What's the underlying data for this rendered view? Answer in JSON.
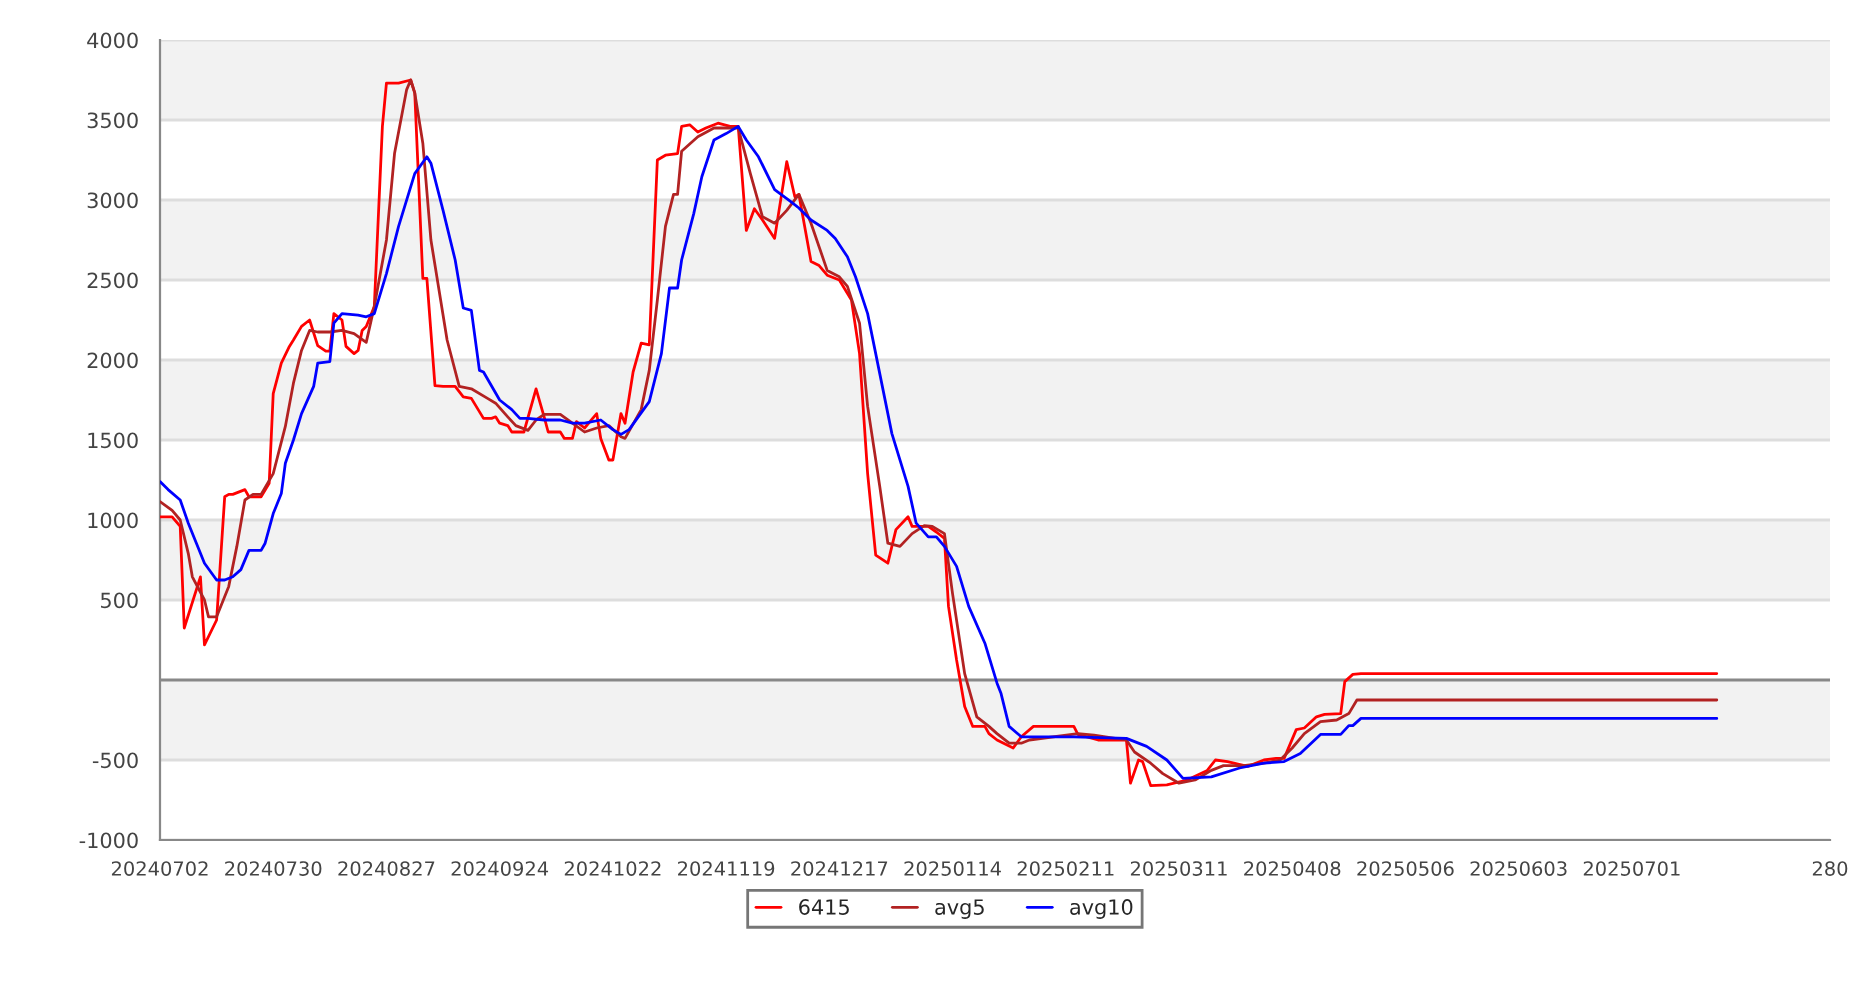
{
  "chart_data": {
    "type": "line",
    "xlim": [
      "2024-07-02",
      "2025-08-19"
    ],
    "ylim": [
      -1000,
      4000
    ],
    "xticks": [
      {
        "value": "2024-07-02",
        "label": "20240702"
      },
      {
        "value": "2024-07-30",
        "label": "20240730"
      },
      {
        "value": "2024-08-27",
        "label": "20240827"
      },
      {
        "value": "2024-09-24",
        "label": "20240924"
      },
      {
        "value": "2024-10-22",
        "label": "20241022"
      },
      {
        "value": "2024-11-19",
        "label": "20241119"
      },
      {
        "value": "2024-12-17",
        "label": "20241217"
      },
      {
        "value": "2025-01-14",
        "label": "20250114"
      },
      {
        "value": "2025-02-11",
        "label": "20250211"
      },
      {
        "value": "2025-03-11",
        "label": "20250311"
      },
      {
        "value": "2025-04-08",
        "label": "20250408"
      },
      {
        "value": "2025-05-06",
        "label": "20250506"
      },
      {
        "value": "2025-06-03",
        "label": "20250603"
      },
      {
        "value": "2025-07-01",
        "label": "20250701"
      },
      {
        "value": "2025-08-19",
        "label": "280"
      }
    ],
    "yticks": [
      -1000,
      -500,
      500,
      1000,
      1500,
      2000,
      2500,
      3000,
      3500,
      4000
    ],
    "grid": "y",
    "legend": "bottom",
    "ref_lines": [
      {
        "axis": "y",
        "value": 0,
        "color": "#888888"
      }
    ],
    "line_style": "solid",
    "marker": "none",
    "bands": [
      {
        "axis": "y",
        "from": 3500,
        "to": 4000,
        "color": "#f2f2f2"
      },
      {
        "axis": "y",
        "from": 2500,
        "to": 3000,
        "color": "#f2f2f2"
      },
      {
        "axis": "y",
        "from": 1500,
        "to": 2000,
        "color": "#f2f2f2"
      },
      {
        "axis": "y",
        "from": 500,
        "to": 1000,
        "color": "#f2f2f2"
      },
      {
        "axis": "y",
        "from": -500,
        "to": 0,
        "color": "#f2f2f2"
      }
    ],
    "series": [
      {
        "name": "6415",
        "color": "#ff0000",
        "x": [
          "2024-07-02",
          "2024-07-05",
          "2024-07-07",
          "2024-07-08",
          "2024-07-12",
          "2024-07-13",
          "2024-07-16",
          "2024-07-18",
          "2024-07-19",
          "2024-07-20",
          "2024-07-23",
          "2024-07-24",
          "2024-07-27",
          "2024-07-29",
          "2024-07-30",
          "2024-08-01",
          "2024-08-03",
          "2024-08-04",
          "2024-08-06",
          "2024-08-08",
          "2024-08-10",
          "2024-08-12",
          "2024-08-13",
          "2024-08-14",
          "2024-08-16",
          "2024-08-17",
          "2024-08-19",
          "2024-08-20",
          "2024-08-21",
          "2024-08-22",
          "2024-08-24",
          "2024-08-26",
          "2024-08-27",
          "2024-08-30",
          "2024-09-02",
          "2024-09-03",
          "2024-09-05",
          "2024-09-06",
          "2024-09-08",
          "2024-09-10",
          "2024-09-13",
          "2024-09-15",
          "2024-09-17",
          "2024-09-20",
          "2024-09-22",
          "2024-09-23",
          "2024-09-24",
          "2024-09-26",
          "2024-09-27",
          "2024-09-30",
          "2024-10-03",
          "2024-10-05",
          "2024-10-06",
          "2024-10-09",
          "2024-10-10",
          "2024-10-12",
          "2024-10-13",
          "2024-10-15",
          "2024-10-17",
          "2024-10-18",
          "2024-10-19",
          "2024-10-21",
          "2024-10-22",
          "2024-10-24",
          "2024-10-25",
          "2024-10-27",
          "2024-10-29",
          "2024-10-31",
          "2024-11-02",
          "2024-11-04",
          "2024-11-07",
          "2024-11-08",
          "2024-11-10",
          "2024-11-12",
          "2024-11-14",
          "2024-11-17",
          "2024-11-20",
          "2024-11-22",
          "2024-11-24",
          "2024-11-26",
          "2024-11-28",
          "2024-12-01",
          "2024-12-04",
          "2024-12-06",
          "2024-12-07",
          "2024-12-10",
          "2024-12-12",
          "2024-12-14",
          "2024-12-17",
          "2024-12-20",
          "2024-12-22",
          "2024-12-24",
          "2024-12-26",
          "2024-12-29",
          "2024-12-31",
          "2025-01-03",
          "2025-01-04",
          "2025-01-08",
          "2025-01-10",
          "2025-01-12",
          "2025-01-13",
          "2025-01-15",
          "2025-01-17",
          "2025-01-19",
          "2025-01-22",
          "2025-01-23",
          "2025-01-25",
          "2025-01-29",
          "2025-01-31",
          "2025-02-03",
          "2025-02-13",
          "2025-02-14",
          "2025-02-19",
          "2025-02-26",
          "2025-02-27",
          "2025-03-01",
          "2025-03-02",
          "2025-03-04",
          "2025-03-08",
          "2025-03-13",
          "2025-03-18",
          "2025-03-20",
          "2025-03-23",
          "2025-03-28",
          "2025-04-01",
          "2025-04-04",
          "2025-04-06",
          "2025-04-09",
          "2025-04-11",
          "2025-04-14",
          "2025-04-16",
          "2025-04-20",
          "2025-04-21",
          "2025-04-23",
          "2025-04-25",
          "2025-07-22"
        ],
        "values": [
          1020,
          1020,
          960,
          325,
          645,
          220,
          375,
          1145,
          1160,
          1160,
          1190,
          1145,
          1145,
          1230,
          1790,
          1980,
          2085,
          2125,
          2210,
          2250,
          2090,
          2055,
          2055,
          2290,
          2250,
          2085,
          2040,
          2060,
          2185,
          2210,
          2335,
          3460,
          3730,
          3730,
          3750,
          3670,
          2510,
          2510,
          1840,
          1835,
          1835,
          1770,
          1760,
          1635,
          1635,
          1645,
          1605,
          1590,
          1550,
          1550,
          1820,
          1645,
          1550,
          1550,
          1510,
          1510,
          1615,
          1575,
          1635,
          1665,
          1510,
          1375,
          1375,
          1665,
          1605,
          1925,
          2105,
          2095,
          3250,
          3280,
          3290,
          3460,
          3470,
          3425,
          3450,
          3480,
          3460,
          3460,
          2810,
          2945,
          2875,
          2760,
          3240,
          3020,
          3035,
          2615,
          2590,
          2530,
          2500,
          2375,
          2040,
          1290,
          780,
          730,
          940,
          1020,
          960,
          960,
          925,
          885,
          460,
          125,
          -165,
          -290,
          -290,
          -335,
          -375,
          -425,
          -355,
          -290,
          -290,
          -340,
          -375,
          -375,
          -645,
          -500,
          -510,
          -660,
          -655,
          -625,
          -565,
          -500,
          -510,
          -540,
          -500,
          -490,
          -490,
          -310,
          -300,
          -230,
          -215,
          -210,
          -10,
          35,
          40,
          40
        ]
      },
      {
        "name": "avg5",
        "color": "#b22222",
        "x": [
          "2024-07-02",
          "2024-07-05",
          "2024-07-07",
          "2024-07-09",
          "2024-07-10",
          "2024-07-13",
          "2024-07-14",
          "2024-07-16",
          "2024-07-19",
          "2024-07-21",
          "2024-07-23",
          "2024-07-25",
          "2024-07-27",
          "2024-07-30",
          "2024-08-02",
          "2024-08-04",
          "2024-08-06",
          "2024-08-08",
          "2024-08-10",
          "2024-08-13",
          "2024-08-16",
          "2024-08-19",
          "2024-08-22",
          "2024-08-24",
          "2024-08-27",
          "2024-08-29",
          "2024-09-01",
          "2024-09-02",
          "2024-09-03",
          "2024-09-05",
          "2024-09-07",
          "2024-09-11",
          "2024-09-14",
          "2024-09-17",
          "2024-09-21",
          "2024-09-23",
          "2024-09-26",
          "2024-09-28",
          "2024-10-01",
          "2024-10-03",
          "2024-10-05",
          "2024-10-09",
          "2024-10-12",
          "2024-10-15",
          "2024-10-18",
          "2024-10-21",
          "2024-10-24",
          "2024-10-25",
          "2024-10-29",
          "2024-10-31",
          "2024-11-02",
          "2024-11-04",
          "2024-11-06",
          "2024-11-07",
          "2024-11-08",
          "2024-11-12",
          "2024-11-16",
          "2024-11-20",
          "2024-11-22",
          "2024-11-25",
          "2024-11-28",
          "2024-12-01",
          "2024-12-04",
          "2024-12-07",
          "2024-12-10",
          "2024-12-14",
          "2024-12-17",
          "2024-12-19",
          "2024-12-22",
          "2024-12-24",
          "2024-12-27",
          "2024-12-29",
          "2025-01-01",
          "2025-01-04",
          "2025-01-07",
          "2025-01-09",
          "2025-01-12",
          "2025-01-14",
          "2025-01-17",
          "2025-01-20",
          "2025-01-23",
          "2025-01-25",
          "2025-01-28",
          "2025-01-31",
          "2025-02-02",
          "2025-02-14",
          "2025-02-18",
          "2025-02-26",
          "2025-02-28",
          "2025-03-04",
          "2025-03-07",
          "2025-03-11",
          "2025-03-15",
          "2025-03-19",
          "2025-03-22",
          "2025-03-27",
          "2025-04-01",
          "2025-04-05",
          "2025-04-08",
          "2025-04-11",
          "2025-04-15",
          "2025-04-19",
          "2025-04-22",
          "2025-04-24",
          "2025-07-22"
        ],
        "values": [
          1115,
          1060,
          1000,
          790,
          645,
          500,
          395,
          395,
          585,
          835,
          1125,
          1160,
          1160,
          1290,
          1585,
          1855,
          2060,
          2185,
          2175,
          2175,
          2185,
          2165,
          2110,
          2335,
          2750,
          3290,
          3690,
          3750,
          3670,
          3355,
          2750,
          2125,
          1835,
          1820,
          1760,
          1730,
          1645,
          1590,
          1560,
          1625,
          1660,
          1660,
          1605,
          1550,
          1575,
          1590,
          1520,
          1510,
          1690,
          1935,
          2375,
          2835,
          3035,
          3035,
          3305,
          3395,
          3450,
          3450,
          3450,
          3165,
          2895,
          2855,
          2935,
          3035,
          2855,
          2560,
          2520,
          2460,
          2230,
          1710,
          1210,
          855,
          835,
          915,
          965,
          960,
          915,
          540,
          40,
          -230,
          -290,
          -335,
          -395,
          -395,
          -375,
          -335,
          -345,
          -375,
          -450,
          -520,
          -585,
          -645,
          -625,
          -565,
          -535,
          -535,
          -520,
          -500,
          -425,
          -335,
          -260,
          -250,
          -210,
          -125,
          -125
        ]
      },
      {
        "name": "avg10",
        "color": "#0000ff",
        "x": [
          "2024-07-02",
          "2024-07-04",
          "2024-07-07",
          "2024-07-09",
          "2024-07-11",
          "2024-07-13",
          "2024-07-16",
          "2024-07-18",
          "2024-07-20",
          "2024-07-22",
          "2024-07-24",
          "2024-07-27",
          "2024-07-28",
          "2024-07-30",
          "2024-08-01",
          "2024-08-02",
          "2024-08-04",
          "2024-08-06",
          "2024-08-09",
          "2024-08-10",
          "2024-08-13",
          "2024-08-14",
          "2024-08-16",
          "2024-08-20",
          "2024-08-22",
          "2024-08-24",
          "2024-08-27",
          "2024-08-30",
          "2024-09-03",
          "2024-09-06",
          "2024-09-07",
          "2024-09-10",
          "2024-09-13",
          "2024-09-15",
          "2024-09-17",
          "2024-09-19",
          "2024-09-20",
          "2024-09-24",
          "2024-09-27",
          "2024-09-29",
          "2024-10-01",
          "2024-10-05",
          "2024-10-09",
          "2024-10-12",
          "2024-10-15",
          "2024-10-19",
          "2024-10-22",
          "2024-10-24",
          "2024-10-26",
          "2024-10-31",
          "2024-11-03",
          "2024-11-05",
          "2024-11-07",
          "2024-11-08",
          "2024-11-11",
          "2024-11-13",
          "2024-11-16",
          "2024-11-19",
          "2024-11-22",
          "2024-11-24",
          "2024-11-27",
          "2024-12-01",
          "2024-12-05",
          "2024-12-07",
          "2024-12-10",
          "2024-12-14",
          "2024-12-16",
          "2024-12-19",
          "2024-12-21",
          "2024-12-24",
          "2024-12-27",
          "2024-12-30",
          "2025-01-03",
          "2025-01-05",
          "2025-01-08",
          "2025-01-10",
          "2025-01-12",
          "2025-01-15",
          "2025-01-18",
          "2025-01-22",
          "2025-01-25",
          "2025-01-26",
          "2025-01-28",
          "2025-01-31",
          "2025-02-03",
          "2025-02-13",
          "2025-02-26",
          "2025-03-03",
          "2025-03-08",
          "2025-03-12",
          "2025-03-19",
          "2025-03-26",
          "2025-04-01",
          "2025-04-06",
          "2025-04-10",
          "2025-04-15",
          "2025-04-20",
          "2025-04-22",
          "2025-04-23",
          "2025-04-25",
          "2025-07-22"
        ],
        "values": [
          1240,
          1190,
          1125,
          980,
          855,
          730,
          625,
          625,
          645,
          690,
          810,
          810,
          855,
          1040,
          1165,
          1355,
          1500,
          1665,
          1835,
          1980,
          1990,
          2230,
          2290,
          2280,
          2270,
          2290,
          2540,
          2835,
          3165,
          3270,
          3230,
          2935,
          2625,
          2325,
          2310,
          1935,
          1925,
          1750,
          1690,
          1635,
          1635,
          1625,
          1625,
          1605,
          1605,
          1625,
          1565,
          1535,
          1565,
          1740,
          2040,
          2450,
          2450,
          2625,
          2915,
          3145,
          3375,
          3415,
          3460,
          3375,
          3270,
          3065,
          2990,
          2950,
          2875,
          2810,
          2760,
          2645,
          2520,
          2290,
          1915,
          1540,
          1210,
          980,
          895,
          895,
          835,
          710,
          460,
          230,
          -20,
          -85,
          -290,
          -355,
          -355,
          -355,
          -365,
          -415,
          -500,
          -615,
          -605,
          -550,
          -520,
          -510,
          -460,
          -340,
          -340,
          -285,
          -285,
          -240,
          -240
        ]
      }
    ]
  }
}
